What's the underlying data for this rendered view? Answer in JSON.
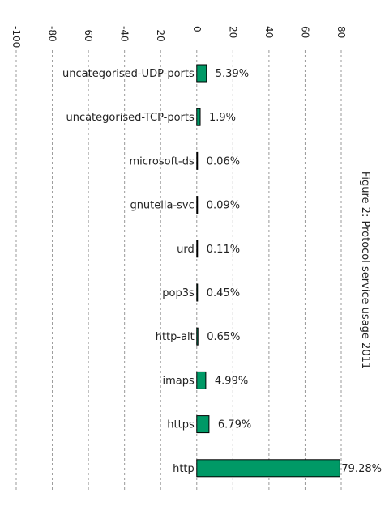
{
  "chart_data": {
    "type": "bar",
    "orientation": "horizontal",
    "title": "Figure 2: Protocol service usage 2011",
    "categories": [
      "uncategorised-UDP-ports",
      "uncategorised-TCP-ports",
      "microsoft-ds",
      "gnutella-svc",
      "urd",
      "pop3s",
      "http-alt",
      "imaps",
      "https",
      "http"
    ],
    "values": [
      5.39,
      1.9,
      0.06,
      0.09,
      0.11,
      0.45,
      0.65,
      4.99,
      6.79,
      79.28
    ],
    "value_labels": [
      "5.39%",
      "1.9%",
      "0.06%",
      "0.09%",
      "0.11%",
      "0.45%",
      "0.65%",
      "4.99%",
      "6.79%",
      "79.28%"
    ],
    "xlim": [
      -100,
      80
    ],
    "xticks": [
      -100,
      -80,
      -60,
      -40,
      -20,
      0,
      20,
      40,
      60,
      80
    ],
    "grid": true,
    "bar_color": "#009966",
    "bar_outline_color": "#000000",
    "grid_color": "#999999"
  }
}
